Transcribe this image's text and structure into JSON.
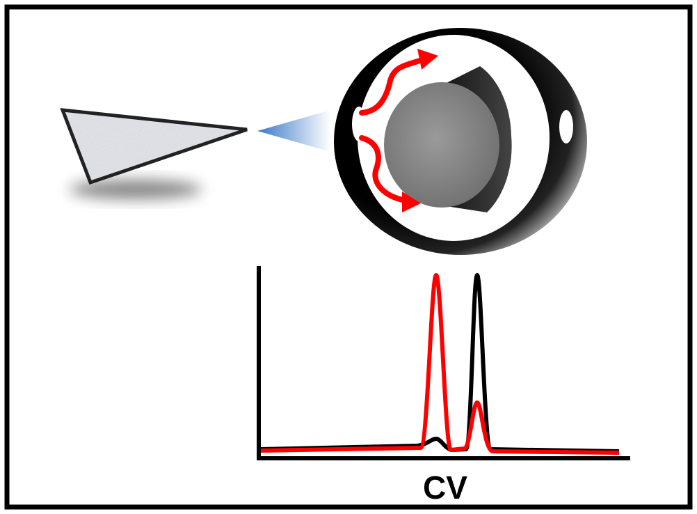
{
  "x_axis_label": "CV"
}
